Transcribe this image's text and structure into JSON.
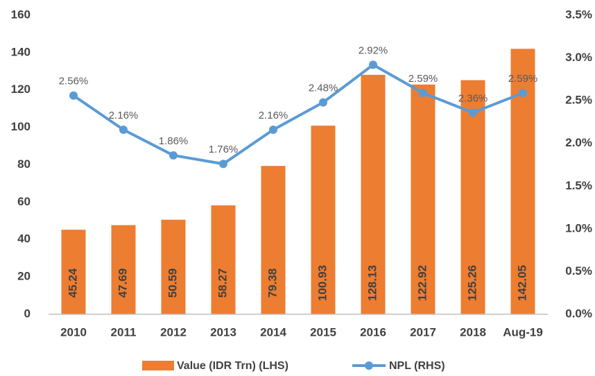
{
  "chart_data": {
    "type": "bar_line",
    "categories": [
      "2010",
      "2011",
      "2012",
      "2013",
      "2014",
      "2015",
      "2016",
      "2017",
      "2018",
      "Aug-19"
    ],
    "series": [
      {
        "name": "Value (IDR Trn) (LHS)",
        "color": "#ED7D31",
        "type": "bar",
        "values": [
          45.24,
          47.69,
          50.59,
          58.27,
          79.38,
          100.93,
          128.13,
          122.92,
          125.26,
          142.05
        ]
      },
      {
        "name": "NPL (RHS)",
        "color": "#5B9BD5",
        "type": "line",
        "axis": "y2",
        "values": [
          2.56,
          2.16,
          1.86,
          1.76,
          2.16,
          2.48,
          2.92,
          2.59,
          2.36,
          2.59
        ],
        "value_labels": [
          "2.56%",
          "2.16%",
          "1.86%",
          "1.76%",
          "2.16%",
          "2.48%",
          "2.92%",
          "2.59%",
          "2.36%",
          "2.59%"
        ]
      }
    ],
    "ylim": [
      0,
      160
    ],
    "yticks": [
      0,
      20,
      40,
      60,
      80,
      100,
      120,
      140,
      160
    ],
    "y2lim": [
      0,
      3.5
    ],
    "y2ticks": [
      {
        "value": 0,
        "label": "0.0%"
      },
      {
        "value": 0.5,
        "label": "0.5%"
      },
      {
        "value": 1,
        "label": "1.0%"
      },
      {
        "value": 1.5,
        "label": "1.5%"
      },
      {
        "value": 2,
        "label": "2.0%"
      },
      {
        "value": 2.5,
        "label": "2.5%"
      },
      {
        "value": 3,
        "label": "3.0%"
      },
      {
        "value": 3.5,
        "label": "3.5%"
      }
    ],
    "legend": "bottom",
    "grid": false
  }
}
